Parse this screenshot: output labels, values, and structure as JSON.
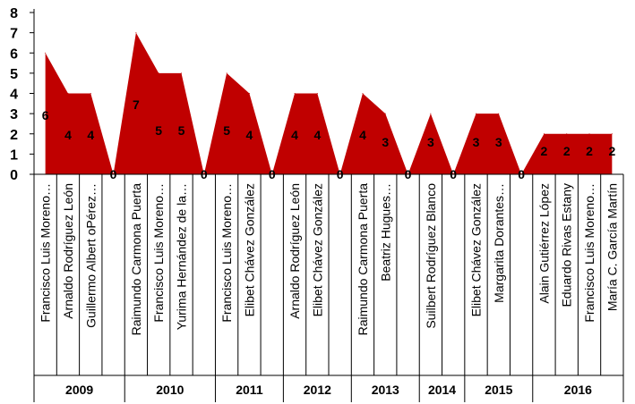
{
  "chart_data": {
    "type": "area",
    "ylim": [
      0,
      8
    ],
    "yticks": [
      0,
      1,
      2,
      3,
      4,
      5,
      6,
      7,
      8
    ],
    "grid": false,
    "legend": "none",
    "colors": {
      "fill": "#C00000",
      "axis": "#000000"
    },
    "categories": [
      "Francisco Luis Moreno…",
      "Arnaldo Rodríguez León",
      "Guillermo Albert oPérez…",
      "",
      "Raimundo Carmona Puerta",
      "Francisco Luis Moreno…",
      "Yurima Hernández de la…",
      "",
      "Francisco Luis Moreno…",
      "Elibet Chávez González",
      "",
      "Arnaldo Rodríguez León",
      "Elibet Chávez González",
      "",
      "Raimundo Carmona Puerta",
      "Beatriz Hugues…",
      "",
      "Suilbert Rodríguez Blanco",
      "",
      "Elibet Chávez González",
      "Margarita Dorantes…",
      "",
      "Alain Gutiérrez López",
      "Eduardo Rivas Estany",
      "Francisco Luis Moreno…",
      "María C. García Martín"
    ],
    "values": [
      6,
      4,
      4,
      0,
      7,
      5,
      5,
      0,
      5,
      4,
      0,
      4,
      4,
      0,
      4,
      3,
      0,
      3,
      0,
      3,
      3,
      0,
      2,
      2,
      2,
      2
    ],
    "groups": [
      {
        "label": "2009",
        "start": 0,
        "end": 3
      },
      {
        "label": "2010",
        "start": 4,
        "end": 7
      },
      {
        "label": "2011",
        "start": 8,
        "end": 10
      },
      {
        "label": "2012",
        "start": 11,
        "end": 13
      },
      {
        "label": "2013",
        "start": 14,
        "end": 16
      },
      {
        "label": "2014",
        "start": 17,
        "end": 18
      },
      {
        "label": "2015",
        "start": 19,
        "end": 21
      },
      {
        "label": "2016",
        "start": 22,
        "end": 25
      }
    ]
  }
}
